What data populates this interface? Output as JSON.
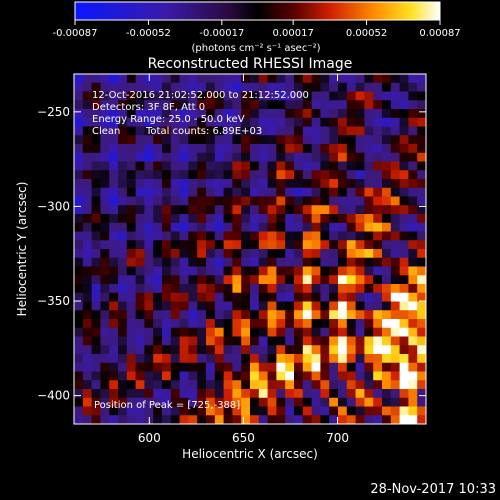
{
  "chart_data": {
    "type": "heatmap",
    "title": "Reconstructed RHESSI Image",
    "xlabel": "Heliocentric X (arcsec)",
    "ylabel": "Heliocentric Y (arcsec)",
    "xlim": [
      560,
      747
    ],
    "ylim": [
      -415,
      -230
    ],
    "x_ticks": [
      600,
      650,
      700
    ],
    "y_ticks": [
      -250,
      -300,
      -350,
      -400
    ],
    "colorbar": {
      "label": "(photons cm⁻² s⁻¹ asec⁻²)",
      "range": [
        -0.00087,
        0.00087
      ],
      "tick_values": [
        -0.00087,
        -0.00052,
        -0.00017,
        0.00017,
        0.00052,
        0.00087
      ],
      "tick_labels": [
        "-0.00087",
        "-0.00052",
        "-0.00017",
        "0.00017",
        "0.00052",
        "0.00087"
      ],
      "colormap": "blue-purple-red-yellow-white"
    },
    "annotations": {
      "time_range": "12-Oct-2016 21:02:52.000 to 21:12:52.000",
      "detectors": "Detectors: 3F 8F, Att 0",
      "energy": "Energy Range: 25.0 - 50.0 keV",
      "clean": "Clean",
      "counts": "Total counts: 6.89E+03",
      "peak": "Position of Peak = [725,-388]"
    },
    "peak_position": [
      725,
      -388
    ],
    "grid": false,
    "intensity_pattern": "Negative values dominate the upper-left, positive values rise toward the lower-right, and the maximum is near the peak position."
  },
  "footer": {
    "date": "28-Nov-2017 10:33"
  }
}
